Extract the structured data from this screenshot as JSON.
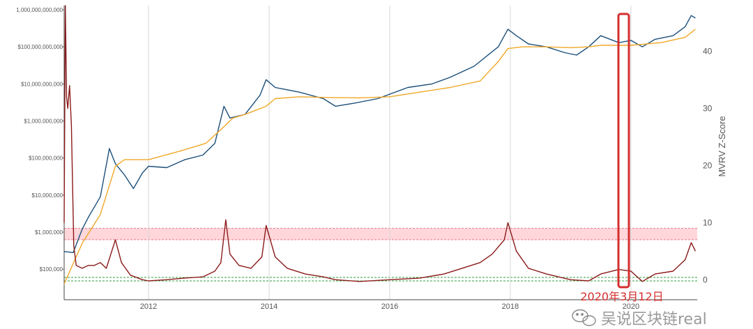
{
  "chart_data": {
    "type": "line",
    "title": "",
    "xlabel": "",
    "x_ticks": [
      "2012",
      "2014",
      "2016",
      "2018",
      "2020"
    ],
    "x_range": [
      2010.6,
      2021.1
    ],
    "left_axis": {
      "scale": "log",
      "range": [
        15000,
        1300000000000
      ],
      "ticks": [
        {
          "value": 1000000000000,
          "label": "1,000,000,000,000"
        },
        {
          "value": 100000000000,
          "label": "$100,000,000,000"
        },
        {
          "value": 10000000000,
          "label": "$10,000,000,000"
        },
        {
          "value": 1000000000,
          "label": "$1,000,000,000"
        },
        {
          "value": 100000000,
          "label": "$100,000,000"
        },
        {
          "value": 10000000,
          "label": "$10,000,000"
        },
        {
          "value": 1000000,
          "label": "$1,000,000"
        },
        {
          "value": 100000,
          "label": "$100,000"
        }
      ]
    },
    "right_axis": {
      "label": "MVRV Z-Score",
      "range": [
        -3.5,
        48
      ],
      "ticks": [
        {
          "value": 0,
          "label": "0"
        },
        {
          "value": 10,
          "label": "10"
        },
        {
          "value": 20,
          "label": "20"
        },
        {
          "value": 30,
          "label": "30"
        },
        {
          "value": 40,
          "label": "40"
        }
      ]
    },
    "bands": {
      "red": {
        "from": 7,
        "to": 9,
        "color": "#ffd6da"
      },
      "green": {
        "from": -0.2,
        "to": 0.4,
        "color": "#2e9e3a"
      }
    },
    "grid": "vertical",
    "series": [
      {
        "color": "#1b4f7a",
        "axis": "left",
        "x": [
          2010.6,
          2010.75,
          2010.9,
          2011.0,
          2011.2,
          2011.35,
          2011.45,
          2011.6,
          2011.75,
          2011.9,
          2012.0,
          2012.3,
          2012.6,
          2012.9,
          2013.1,
          2013.25,
          2013.35,
          2013.6,
          2013.85,
          2013.95,
          2014.1,
          2014.5,
          2014.9,
          2015.1,
          2015.4,
          2015.8,
          2016.3,
          2016.7,
          2017.0,
          2017.4,
          2017.8,
          2017.96,
          2018.1,
          2018.3,
          2018.6,
          2018.9,
          2019.1,
          2019.3,
          2019.5,
          2019.8,
          2020.0,
          2020.19,
          2020.4,
          2020.7,
          2020.9,
          2021.0,
          2021.07
        ],
        "values": [
          300000,
          280000,
          1200000,
          2500000,
          9000000,
          180000000,
          70000000,
          35000000,
          15000000,
          40000000,
          60000000,
          55000000,
          90000000,
          120000000,
          250000000,
          2500000000,
          1200000000,
          1500000000,
          5000000000,
          13000000000,
          8000000000,
          6000000000,
          4000000000,
          2500000000,
          3000000000,
          4000000000,
          8000000000,
          10000000000,
          15000000000,
          30000000000,
          100000000000,
          300000000000,
          200000000000,
          120000000000,
          100000000000,
          70000000000,
          60000000000,
          100000000000,
          200000000000,
          130000000000,
          150000000000,
          100000000000,
          160000000000,
          200000000000,
          350000000000,
          700000000000,
          600000000000
        ]
      },
      {
        "color": "#f0a828",
        "axis": "left",
        "x": [
          2010.6,
          2010.9,
          2011.2,
          2011.45,
          2011.6,
          2012.0,
          2012.5,
          2012.95,
          2013.25,
          2013.4,
          2013.6,
          2013.95,
          2014.1,
          2014.5,
          2015.0,
          2015.5,
          2016.0,
          2016.5,
          2017.0,
          2017.5,
          2017.8,
          2017.96,
          2018.2,
          2018.6,
          2019.0,
          2019.3,
          2019.5,
          2020.0,
          2020.5,
          2020.9,
          2021.07
        ],
        "values": [
          40000,
          500000,
          3000000,
          60000000,
          90000000,
          90000000,
          150000000,
          250000000,
          700000000,
          1200000000,
          1500000000,
          2500000000,
          4000000000,
          4500000000,
          4300000000,
          4200000000,
          4500000000,
          6000000000,
          8000000000,
          12000000000,
          40000000000,
          90000000000,
          100000000000,
          100000000000,
          95000000000,
          100000000000,
          110000000000,
          110000000000,
          130000000000,
          180000000000,
          300000000000
        ]
      },
      {
        "color": "#8b1a1a",
        "axis": "right",
        "x": [
          2010.6,
          2010.62,
          2010.64,
          2010.66,
          2010.69,
          2010.72,
          2010.76,
          2010.8,
          2010.9,
          2011.0,
          2011.1,
          2011.2,
          2011.3,
          2011.45,
          2011.55,
          2011.7,
          2011.9,
          2012.0,
          2012.3,
          2012.6,
          2012.9,
          2013.1,
          2013.2,
          2013.28,
          2013.35,
          2013.5,
          2013.7,
          2013.88,
          2013.95,
          2014.1,
          2014.3,
          2014.6,
          2014.9,
          2015.1,
          2015.5,
          2016.0,
          2016.5,
          2016.9,
          2017.2,
          2017.5,
          2017.7,
          2017.9,
          2017.96,
          2018.1,
          2018.3,
          2018.6,
          2019.0,
          2019.3,
          2019.5,
          2019.8,
          2020.0,
          2020.19,
          2020.4,
          2020.7,
          2020.9,
          2021.0,
          2021.07
        ],
        "values": [
          10,
          48,
          32,
          30,
          34,
          27,
          6,
          2.5,
          2,
          2.5,
          2.5,
          3,
          2,
          7,
          3,
          0.8,
          0,
          -0.2,
          0,
          0.3,
          0.5,
          1.5,
          3,
          10.5,
          4.5,
          2.5,
          2,
          4,
          9.5,
          4,
          2,
          1,
          0.5,
          0,
          -0.3,
          0,
          0.3,
          1,
          2,
          3,
          4.5,
          7,
          10,
          5,
          2,
          1,
          0,
          -0.2,
          1,
          1.8,
          1.5,
          -0.3,
          1,
          1.5,
          3.5,
          6.5,
          5
        ]
      }
    ],
    "annotations": [
      {
        "text": "2020年3月12日",
        "x": 2020.19,
        "color": "#d42e2e"
      }
    ]
  },
  "watermark": {
    "text": "吴说区块链real"
  }
}
